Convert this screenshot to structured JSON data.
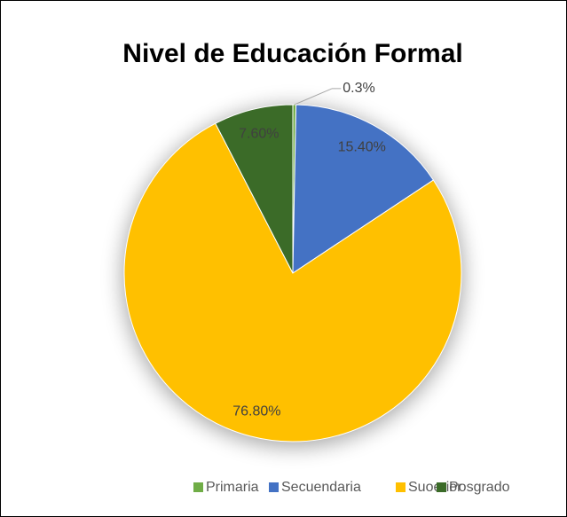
{
  "chart_data": {
    "type": "pie",
    "title": "Nivel de Educación Formal",
    "categories": [
      "Primaria",
      "Secuendaria",
      "Suoerior",
      "Posgrado"
    ],
    "values": [
      0.3,
      15.4,
      76.8,
      7.6
    ],
    "value_labels": [
      "0.3%",
      "15.40%",
      "76.80%",
      "7.60%"
    ],
    "colors": [
      "#70ad47",
      "#4472c4",
      "#ffc000",
      "#3b6b28"
    ],
    "legend": "bottom"
  }
}
